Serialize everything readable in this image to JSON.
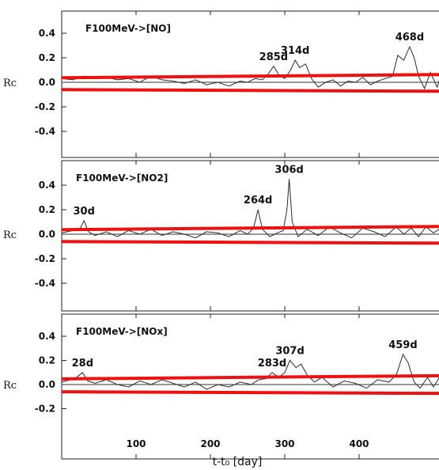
{
  "chart_data": [
    {
      "type": "line",
      "title": "F100MeV->[NO]",
      "ylabel": "Rc",
      "xlim": [
        0,
        520
      ],
      "ylim": [
        -0.55,
        0.55
      ],
      "yticks": [
        "0.4",
        "0.2",
        "0.0",
        "-0.2",
        "-0.4"
      ],
      "significance": {
        "upper": 0.05,
        "lower": -0.06
      },
      "peaks": [
        {
          "label": "285d",
          "x": 285,
          "y": 0.13
        },
        {
          "label": "314d",
          "x": 314,
          "y": 0.18
        },
        {
          "label": "468d",
          "x": 468,
          "y": 0.29
        }
      ],
      "series": [
        {
          "x": [
            0,
            15,
            30,
            45,
            60,
            75,
            90,
            105,
            120,
            135,
            150,
            165,
            180,
            195,
            210,
            225,
            240,
            250,
            260,
            270,
            278,
            285,
            292,
            300,
            308,
            314,
            320,
            328,
            336,
            345,
            355,
            365,
            375,
            385,
            395,
            405,
            415,
            425,
            435,
            445,
            452,
            460,
            468,
            474,
            480,
            488,
            496,
            505,
            512,
            520
          ],
          "y": [
            0.03,
            0.02,
            0.05,
            0.03,
            0.04,
            0.02,
            0.03,
            0.0,
            0.05,
            0.02,
            0.01,
            -0.01,
            0.02,
            -0.02,
            0.0,
            -0.03,
            0.01,
            0.0,
            0.03,
            0.02,
            0.07,
            0.13,
            0.06,
            0.03,
            0.1,
            0.18,
            0.12,
            0.15,
            0.03,
            -0.04,
            0.0,
            0.02,
            -0.03,
            0.01,
            0.0,
            0.04,
            -0.02,
            0.01,
            0.03,
            0.05,
            0.22,
            0.18,
            0.29,
            0.2,
            0.05,
            -0.05,
            0.08,
            -0.04,
            0.1,
            0.18
          ]
        }
      ]
    },
    {
      "type": "line",
      "title": "F100MeV->[NO2]",
      "ylabel": "Rc",
      "xlim": [
        0,
        520
      ],
      "ylim": [
        -0.55,
        0.55
      ],
      "yticks": [
        "0.4",
        "0.2",
        "0.0",
        "-0.2",
        "-0.4"
      ],
      "significance": {
        "upper": 0.05,
        "lower": -0.06
      },
      "peaks": [
        {
          "label": "30d",
          "x": 30,
          "y": 0.11
        },
        {
          "label": "264d",
          "x": 264,
          "y": 0.2
        },
        {
          "label": "306d",
          "x": 306,
          "y": 0.45
        }
      ],
      "series": [
        {
          "x": [
            0,
            15,
            25,
            30,
            36,
            45,
            60,
            75,
            90,
            105,
            120,
            135,
            150,
            165,
            180,
            195,
            210,
            225,
            240,
            250,
            258,
            264,
            270,
            280,
            290,
            298,
            303,
            306,
            310,
            318,
            330,
            345,
            360,
            375,
            390,
            405,
            420,
            435,
            450,
            460,
            470,
            480,
            490,
            500,
            510,
            520
          ],
          "y": [
            0.01,
            0.03,
            0.05,
            0.11,
            0.02,
            -0.01,
            0.02,
            -0.02,
            0.03,
            0.0,
            0.04,
            -0.01,
            0.02,
            0.0,
            -0.03,
            0.02,
            0.01,
            -0.02,
            0.03,
            0.0,
            0.05,
            0.2,
            0.04,
            -0.02,
            0.01,
            0.03,
            0.2,
            0.45,
            0.1,
            -0.02,
            0.04,
            -0.01,
            0.06,
            0.01,
            -0.03,
            0.05,
            0.02,
            -0.02,
            0.06,
            0.0,
            0.05,
            -0.02,
            0.06,
            0.01,
            0.05,
            0.07
          ]
        }
      ]
    },
    {
      "type": "line",
      "title": "F100MeV->[NOx]",
      "ylabel": "Rc",
      "xlim": [
        0,
        520
      ],
      "ylim": [
        -0.3,
        0.55
      ],
      "yticks": [
        "0.4",
        "0.2",
        "0.0",
        "-0.2"
      ],
      "significance": {
        "upper": 0.06,
        "lower": -0.06
      },
      "peaks": [
        {
          "label": "28d",
          "x": 28,
          "y": 0.1
        },
        {
          "label": "283d",
          "x": 283,
          "y": 0.1
        },
        {
          "label": "307d",
          "x": 307,
          "y": 0.2
        },
        {
          "label": "459d",
          "x": 459,
          "y": 0.25
        }
      ],
      "series": [
        {
          "x": [
            0,
            12,
            20,
            28,
            35,
            45,
            60,
            75,
            90,
            105,
            120,
            135,
            150,
            165,
            180,
            195,
            210,
            225,
            240,
            255,
            265,
            275,
            283,
            292,
            300,
            307,
            315,
            322,
            330,
            340,
            350,
            365,
            380,
            395,
            410,
            425,
            440,
            450,
            459,
            466,
            474,
            482,
            492,
            500,
            510,
            520
          ],
          "y": [
            0.02,
            0.04,
            0.06,
            0.1,
            0.03,
            0.01,
            0.04,
            0.0,
            -0.02,
            0.03,
            0.0,
            0.04,
            0.01,
            -0.02,
            0.02,
            -0.04,
            0.0,
            -0.02,
            0.02,
            0.0,
            0.04,
            0.05,
            0.1,
            0.06,
            0.1,
            0.2,
            0.14,
            0.17,
            0.08,
            0.02,
            0.06,
            -0.02,
            0.03,
            0.01,
            -0.03,
            0.04,
            0.02,
            0.08,
            0.25,
            0.18,
            0.02,
            -0.03,
            0.06,
            -0.02,
            0.08,
            0.15
          ]
        }
      ]
    }
  ],
  "axes": {
    "xticks": [
      "100",
      "200",
      "300",
      "400"
    ],
    "xlabel": "t-t₀ [day]"
  }
}
